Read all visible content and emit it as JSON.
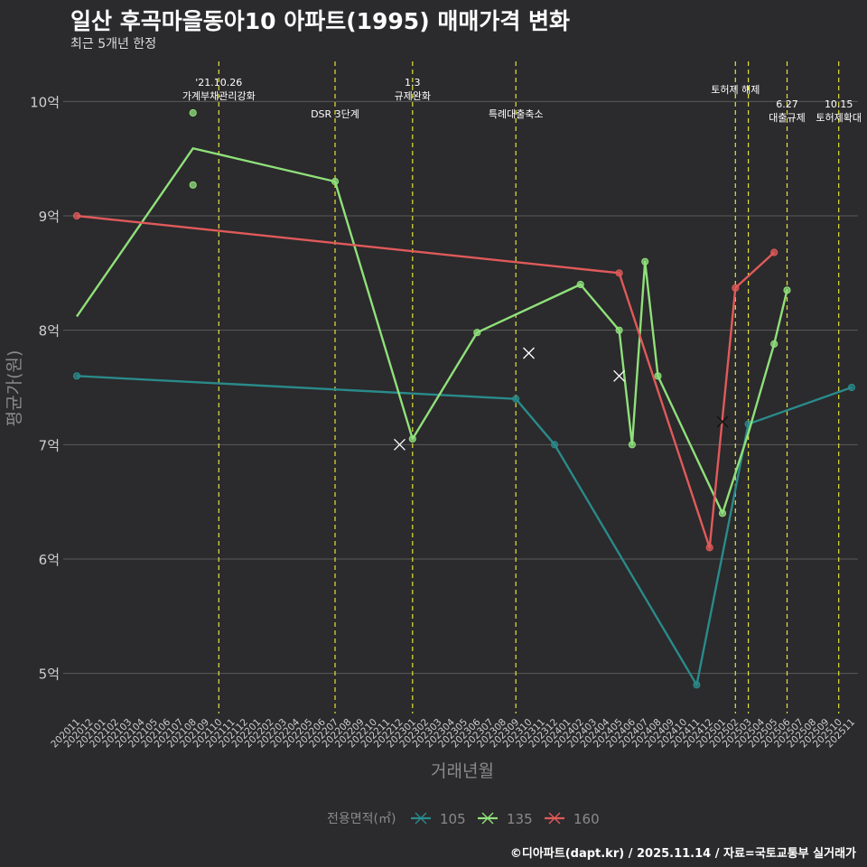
{
  "header": {
    "title": "일산 후곡마을동아10 아파트(1995) 매매가격 변화",
    "subtitle": "최근 5개년 한정"
  },
  "caption": "©디아파트(dapt.kr) / 2025.11.14 / 자료=국토교통부 실거래가",
  "colors": {
    "background": "#2b2a2c",
    "grid": "#5a5a5a",
    "event_line": "#e3e33a",
    "series_105": "#2a8a8a",
    "series_135": "#8fe07a",
    "series_160": "#e05a5a",
    "axis_text": "#cfcfcf",
    "axis_title": "#8a8a8a"
  },
  "chart_data": {
    "type": "line",
    "xlabel": "거래년월",
    "ylabel": "평균가(원)",
    "ylim": [
      4.65,
      10.35
    ],
    "yticks": [
      5,
      6,
      7,
      8,
      9,
      10
    ],
    "ytick_labels": [
      "5억",
      "6억",
      "7억",
      "8억",
      "9억",
      "10억"
    ],
    "categories": [
      "202011",
      "202012",
      "202101",
      "202102",
      "202103",
      "202104",
      "202105",
      "202106",
      "202107",
      "202108",
      "202109",
      "202110",
      "202111",
      "202112",
      "202201",
      "202202",
      "202203",
      "202204",
      "202205",
      "202206",
      "202207",
      "202208",
      "202209",
      "202210",
      "202211",
      "202212",
      "202301",
      "202302",
      "202303",
      "202304",
      "202305",
      "202306",
      "202307",
      "202308",
      "202309",
      "202310",
      "202311",
      "202312",
      "202401",
      "202402",
      "202403",
      "202404",
      "202405",
      "202406",
      "202407",
      "202408",
      "202409",
      "202410",
      "202411",
      "202412",
      "202501",
      "202502",
      "202503",
      "202504",
      "202505",
      "202506",
      "202507",
      "202508",
      "202509",
      "202510",
      "202511"
    ],
    "legend": {
      "title": "전용면적(㎡)",
      "placement": "bottom",
      "entries": [
        "105",
        "135",
        "160"
      ]
    },
    "series": [
      {
        "name": "105",
        "color_key": "series_105",
        "line": [
          [
            "202011",
            7.6
          ],
          [
            "202309",
            7.4
          ],
          [
            "202312",
            7.0
          ],
          [
            "202411",
            4.9
          ],
          [
            "202503",
            7.18
          ],
          [
            "202511",
            7.5
          ]
        ],
        "points": [
          [
            "202011",
            7.6
          ],
          [
            "202309",
            7.4
          ],
          [
            "202312",
            7.0
          ],
          [
            "202411",
            4.9
          ],
          [
            "202503",
            7.18
          ],
          [
            "202511",
            7.5
          ]
        ]
      },
      {
        "name": "135",
        "color_key": "series_135",
        "line": [
          [
            "202011",
            8.12
          ],
          [
            "202108",
            9.59
          ],
          [
            "202207",
            9.3
          ],
          [
            "202301",
            7.05
          ],
          [
            "202306",
            7.98
          ],
          [
            "202402",
            8.4
          ],
          [
            "202405",
            8.0
          ],
          [
            "202406",
            7.0
          ],
          [
            "202407",
            8.6
          ],
          [
            "202408",
            7.6
          ],
          [
            "202501",
            6.4
          ],
          [
            "202503",
            7.1
          ],
          [
            "202505",
            7.88
          ],
          [
            "202506",
            8.35
          ]
        ],
        "points": [
          [
            "202108",
            9.9
          ],
          [
            "202108",
            9.27
          ],
          [
            "202207",
            9.3
          ],
          [
            "202301",
            7.05
          ],
          [
            "202306",
            7.98
          ],
          [
            "202402",
            8.4
          ],
          [
            "202405",
            8.0
          ],
          [
            "202406",
            7.0
          ],
          [
            "202407",
            8.6
          ],
          [
            "202408",
            7.6
          ],
          [
            "202501",
            6.4
          ],
          [
            "202505",
            7.88
          ],
          [
            "202506",
            8.35
          ]
        ]
      },
      {
        "name": "160",
        "color_key": "series_160",
        "line": [
          [
            "202011",
            9.0
          ],
          [
            "202405",
            8.5
          ],
          [
            "202412",
            6.1
          ],
          [
            "202502",
            8.37
          ],
          [
            "202505",
            8.68
          ]
        ],
        "points": [
          [
            "202011",
            9.0
          ],
          [
            "202405",
            8.5
          ],
          [
            "202412",
            6.1
          ],
          [
            "202502",
            8.37
          ],
          [
            "202505",
            8.68
          ]
        ]
      }
    ],
    "cancelled_deals": [
      {
        "x": "202212",
        "y": 7.0,
        "series": "135"
      },
      {
        "x": "202310",
        "y": 7.8,
        "series": "135"
      },
      {
        "x": "202405",
        "y": 7.6,
        "series": "135"
      },
      {
        "x": "202501",
        "y": 7.2,
        "series": "160"
      }
    ],
    "events": [
      {
        "x": "202110",
        "lines": [
          "'21.10.26",
          "가계부채관리강화"
        ],
        "level": "top"
      },
      {
        "x": "202207",
        "lines": [
          "DSR 3단계"
        ],
        "level": "low"
      },
      {
        "x": "202301",
        "lines": [
          "1.3",
          "규제완화"
        ],
        "level": "top"
      },
      {
        "x": "202309",
        "lines": [
          "특례대출축소"
        ],
        "level": "low"
      },
      {
        "x": "202502",
        "lines": [
          "토허제 해제"
        ],
        "level": "mid"
      },
      {
        "x": "202503",
        "lines": [],
        "level": "none"
      },
      {
        "x": "202506",
        "lines": [
          "6.27",
          "대출규제"
        ],
        "level": "lower"
      },
      {
        "x": "202510",
        "lines": [
          "10.15",
          "토허제확대"
        ],
        "level": "lower"
      }
    ]
  }
}
